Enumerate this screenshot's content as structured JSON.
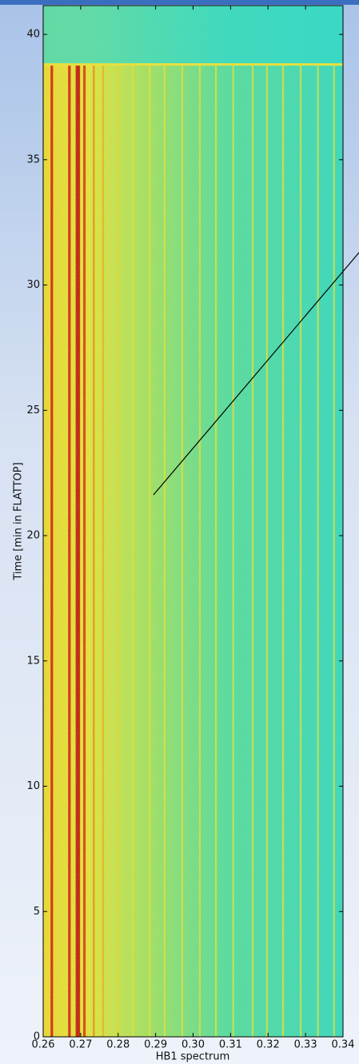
{
  "chart_data": {
    "type": "spectrogram",
    "xlabel": "HB1 spectrum",
    "ylabel": "Time [min in FLATTOP]",
    "xlim": [
      0.26,
      0.34
    ],
    "ylim": [
      0,
      41.15
    ],
    "xticks": [
      0.26,
      0.27,
      0.28,
      0.29,
      {
        "value": 0.3,
        "label": "0.30"
      },
      0.31,
      0.32,
      0.33,
      0.34
    ],
    "yticks": [
      0,
      5,
      10,
      15,
      20,
      25,
      30,
      35,
      40
    ],
    "signal_end": 38.8,
    "lines": [
      {
        "x": 0.2623,
        "color": "#d8200c"
      },
      {
        "x": 0.267,
        "color": "#d8200c"
      },
      {
        "x": 0.269,
        "color": "#c81808"
      },
      {
        "x": 0.2695,
        "color": "#c81808"
      },
      {
        "x": 0.271,
        "color": "#e03a10"
      },
      {
        "x": 0.2735,
        "color": "#f08a18"
      },
      {
        "x": 0.276,
        "color": "#f0b020"
      },
      {
        "x": 0.28,
        "color": "#e8d828"
      },
      {
        "x": 0.2839,
        "color": "#e8e030"
      },
      {
        "x": 0.2884,
        "color": "#e8e030"
      },
      {
        "x": 0.2924,
        "color": "#e0e038"
      },
      {
        "x": 0.2971,
        "color": "#e0e038"
      },
      {
        "x": 0.3018,
        "color": "#d8e040"
      },
      {
        "x": 0.3061,
        "color": "#e0e030"
      },
      {
        "x": 0.3107,
        "color": "#d8e040"
      },
      {
        "x": 0.3159,
        "color": "#d8e040"
      },
      {
        "x": 0.3197,
        "color": "#d8e040"
      },
      {
        "x": 0.324,
        "color": "#e0e030"
      },
      {
        "x": 0.3287,
        "color": "#d0e048"
      },
      {
        "x": 0.3333,
        "color": "#d0e048"
      },
      {
        "x": 0.3376,
        "color": "#d0e048"
      }
    ]
  }
}
